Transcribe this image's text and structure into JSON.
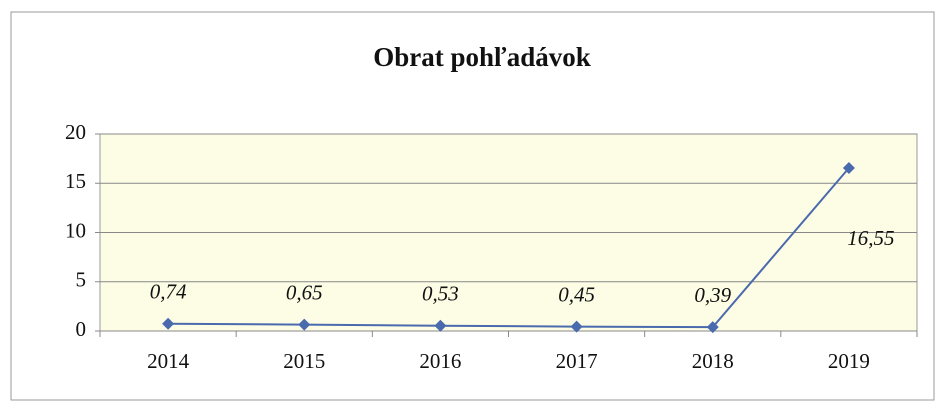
{
  "chart_data": {
    "type": "line",
    "title": "Obrat pohľadávok",
    "categories": [
      "2014",
      "2015",
      "2016",
      "2017",
      "2018",
      "2019"
    ],
    "values": [
      0.74,
      0.65,
      0.53,
      0.45,
      0.39,
      16.55
    ],
    "value_labels": [
      "0,74",
      "0,65",
      "0,53",
      "0,45",
      "0,39",
      "16,55"
    ],
    "color": "#4a6aae",
    "ylim": [
      0,
      20
    ],
    "yticks": [
      0,
      5,
      10,
      15,
      20
    ],
    "grid": true
  }
}
